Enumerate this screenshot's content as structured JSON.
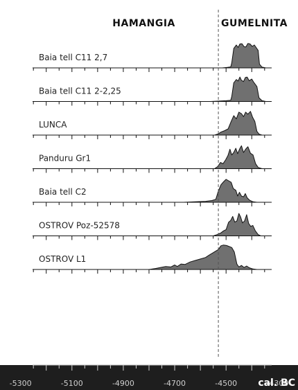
{
  "chart_data": {
    "type": "area",
    "title": "",
    "xlabel": "cal. BC",
    "xlim": [
      -5380,
      -4220
    ],
    "x_ticks": [
      -5300,
      -5100,
      -4900,
      -4700,
      -4500,
      -4300
    ],
    "tick_labels": [
      "-5300",
      "-5100",
      "-4900",
      "-4700",
      "-4500",
      "-4300"
    ],
    "boundary_x": -4530,
    "periods": [
      {
        "name": "HAMANGIA",
        "center_x": -4820
      },
      {
        "name": "GUMELNITA",
        "center_x": -4390
      }
    ],
    "colors": {
      "fill": "#707070",
      "stroke": "#111111",
      "axis_band": "#1e1e1e",
      "axis_text": "#cfcfcf"
    },
    "series": [
      {
        "name": "Baia tell C11 2,7",
        "x": [
          -4515,
          -4495,
          -4482,
          -4478,
          -4470,
          -4460,
          -4453,
          -4446,
          -4438,
          -4430,
          -4423,
          -4415,
          -4407,
          -4398,
          -4390,
          -4375,
          -4370,
          -4360,
          -4345
        ],
        "y": [
          0,
          0.02,
          0.04,
          0.2,
          0.78,
          0.92,
          0.82,
          0.96,
          0.97,
          0.85,
          0.84,
          0.98,
          0.96,
          0.86,
          0.92,
          0.7,
          0.15,
          0.03,
          0
        ]
      },
      {
        "name": "Baia tell C11 2-2,25",
        "x": [
          -4560,
          -4540,
          -4520,
          -4500,
          -4482,
          -4478,
          -4470,
          -4460,
          -4453,
          -4446,
          -4440,
          -4432,
          -4425,
          -4418,
          -4410,
          -4400,
          -4393,
          -4380,
          -4372,
          -4360,
          -4345
        ],
        "y": [
          0,
          0.01,
          0.02,
          0.03,
          0.05,
          0.2,
          0.75,
          0.88,
          0.82,
          0.98,
          0.85,
          0.8,
          0.96,
          0.98,
          0.83,
          0.9,
          0.78,
          0.6,
          0.15,
          0.03,
          0
        ]
      },
      {
        "name": "LUNCA",
        "x": [
          -4545,
          -4530,
          -4520,
          -4505,
          -4492,
          -4480,
          -4470,
          -4460,
          -4450,
          -4440,
          -4432,
          -4424,
          -4415,
          -4405,
          -4397,
          -4388,
          -4380,
          -4372,
          -4360
        ],
        "y": [
          0,
          0.05,
          0.12,
          0.18,
          0.25,
          0.55,
          0.78,
          0.65,
          0.92,
          0.86,
          0.74,
          0.92,
          0.84,
          0.95,
          0.72,
          0.55,
          0.15,
          0.04,
          0
        ]
      },
      {
        "name": "Panduru Gr1",
        "x": [
          -4545,
          -4533,
          -4522,
          -4512,
          -4502,
          -4493,
          -4485,
          -4478,
          -4470,
          -4462,
          -4455,
          -4447,
          -4440,
          -4432,
          -4424,
          -4415,
          -4405,
          -4395,
          -4385,
          -4375,
          -4360
        ],
        "y": [
          0,
          0.08,
          0.25,
          0.2,
          0.35,
          0.52,
          0.78,
          0.55,
          0.65,
          0.82,
          0.6,
          0.8,
          0.92,
          0.65,
          0.78,
          0.88,
          0.62,
          0.55,
          0.2,
          0.05,
          0
        ]
      },
      {
        "name": "Baia tell C2",
        "x": [
          -4665,
          -4620,
          -4580,
          -4555,
          -4540,
          -4530,
          -4520,
          -4510,
          -4500,
          -4490,
          -4480,
          -4472,
          -4462,
          -4455,
          -4448,
          -4440,
          -4432,
          -4425,
          -4418,
          -4408,
          -4395,
          -4380
        ],
        "y": [
          0,
          0.02,
          0.04,
          0.07,
          0.12,
          0.45,
          0.7,
          0.82,
          0.92,
          0.86,
          0.8,
          0.55,
          0.48,
          0.25,
          0.4,
          0.25,
          0.22,
          0.35,
          0.18,
          0.08,
          0.02,
          0
        ]
      },
      {
        "name": "OSTROV Poz-52578",
        "x": [
          -4550,
          -4535,
          -4520,
          -4510,
          -4500,
          -4490,
          -4482,
          -4474,
          -4466,
          -4458,
          -4450,
          -4443,
          -4436,
          -4428,
          -4420,
          -4412,
          -4404,
          -4396,
          -4386,
          -4375,
          -4365
        ],
        "y": [
          0,
          0.05,
          0.12,
          0.2,
          0.25,
          0.55,
          0.62,
          0.78,
          0.55,
          0.6,
          0.9,
          0.75,
          0.52,
          0.6,
          0.85,
          0.5,
          0.38,
          0.42,
          0.2,
          0.05,
          0
        ]
      },
      {
        "name": "OSTROV L1",
        "x": [
          -4800,
          -4775,
          -4755,
          -4735,
          -4715,
          -4700,
          -4690,
          -4675,
          -4660,
          -4640,
          -4620,
          -4600,
          -4580,
          -4565,
          -4552,
          -4540,
          -4530,
          -4520,
          -4510,
          -4498,
          -4488,
          -4478,
          -4468,
          -4458,
          -4450,
          -4440,
          -4430,
          -4420,
          -4410,
          -4395,
          -4380
        ],
        "y": [
          0,
          0.04,
          0.08,
          0.12,
          0.1,
          0.18,
          0.12,
          0.22,
          0.2,
          0.3,
          0.36,
          0.42,
          0.48,
          0.58,
          0.66,
          0.74,
          0.8,
          0.95,
          0.98,
          0.96,
          0.92,
          0.88,
          0.7,
          0.22,
          0.1,
          0.16,
          0.08,
          0.14,
          0.07,
          0.02,
          0
        ]
      }
    ]
  }
}
